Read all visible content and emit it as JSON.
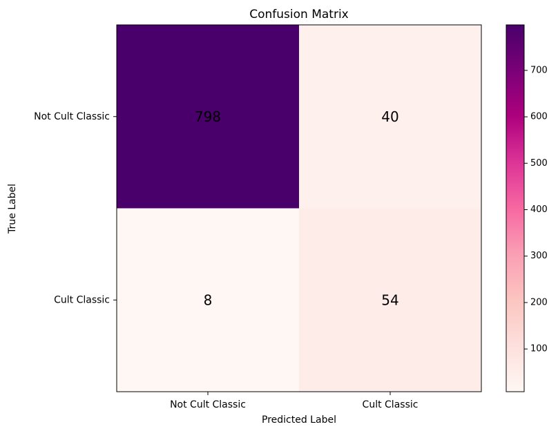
{
  "chart_data": {
    "type": "heatmap",
    "title": "Confusion Matrix",
    "xlabel": "Predicted Label",
    "ylabel": "True Label",
    "x_categories": [
      "Not Cult Classic",
      "Cult Classic"
    ],
    "y_categories": [
      "Not Cult Classic",
      "Cult Classic"
    ],
    "matrix": [
      [
        798,
        40
      ],
      [
        8,
        54
      ]
    ],
    "colormap": "RdPu",
    "colorbar": {
      "min": 8,
      "max": 798,
      "ticks": [
        100,
        200,
        300,
        400,
        500,
        600,
        700
      ]
    },
    "colors": {
      "cmap_stops": [
        "#fff7f3",
        "#fde0dd",
        "#fcc5c0",
        "#fa9fb5",
        "#f768a1",
        "#dd3497",
        "#ae017e",
        "#7a0177",
        "#49006a"
      ]
    }
  }
}
